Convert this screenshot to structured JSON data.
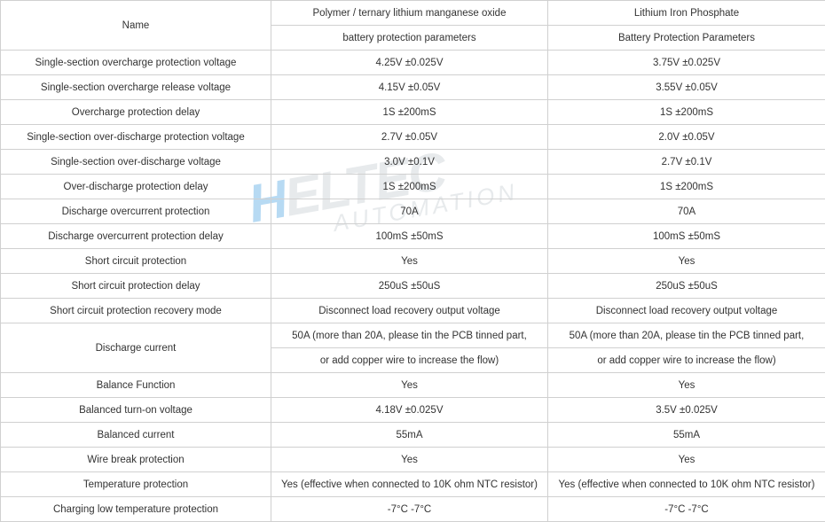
{
  "colors": {
    "border": "#d0d0d0",
    "text": "#333333",
    "watermark_h": "rgba(50,150,220,0.35)",
    "watermark_text": "rgba(160,170,180,0.25)"
  },
  "watermark": {
    "main": "HELTEC",
    "sub": "AUTOMATION"
  },
  "header": {
    "name": "Name",
    "col2a": "Polymer / ternary lithium manganese oxide",
    "col2b": "battery protection parameters",
    "col3a": "Lithium Iron Phosphate",
    "col3b": "Battery Protection Parameters"
  },
  "rows": [
    {
      "label": "Single-section overcharge protection voltage",
      "c2": "4.25V  ±0.025V",
      "c3": "3.75V  ±0.025V"
    },
    {
      "label": "Single-section overcharge release voltage",
      "c2": "4.15V  ±0.05V",
      "c3": "3.55V  ±0.05V"
    },
    {
      "label": "Overcharge protection delay",
      "c2": "1S   ±200mS",
      "c3": "1S   ±200mS"
    },
    {
      "label": "Single-section over-discharge protection voltage",
      "c2": "2.7V  ±0.05V",
      "c3": "2.0V  ±0.05V"
    },
    {
      "label": "Single-section over-discharge voltage",
      "c2": "3.0V  ±0.1V",
      "c3": "2.7V  ±0.1V"
    },
    {
      "label": "Over-discharge protection delay",
      "c2": "1S ±200mS",
      "c3": "1S ±200mS"
    },
    {
      "label": "Discharge overcurrent protection",
      "c2": "70A",
      "c3": "70A"
    },
    {
      "label": "Discharge overcurrent protection delay",
      "c2": "100mS   ±50mS",
      "c3": "100mS   ±50mS"
    },
    {
      "label": "Short circuit protection",
      "c2": "Yes",
      "c3": "Yes"
    },
    {
      "label": "Short circuit protection delay",
      "c2": "250uS ±50uS",
      "c3": "250uS ±50uS"
    },
    {
      "label": "Short circuit protection recovery mode",
      "c2": "Disconnect load recovery output voltage",
      "c3": "Disconnect load recovery output voltage"
    }
  ],
  "discharge_current": {
    "label": "Discharge current",
    "c2a": "50A (more than 20A, please tin the PCB tinned part,",
    "c2b": "or add copper wire to increase the flow)",
    "c3a": "50A (more than 20A, please tin the PCB tinned part,",
    "c3b": "or add copper wire to increase the flow)"
  },
  "rows2": [
    {
      "label": "Balance Function",
      "c2": "Yes",
      "c3": "Yes"
    },
    {
      "label": "Balanced turn-on voltage",
      "c2": "4.18V  ±0.025V",
      "c3": "3.5V  ±0.025V"
    },
    {
      "label": "Balanced current",
      "c2": "55mA",
      "c3": "55mA"
    },
    {
      "label": "Wire break protection",
      "c2": "Yes",
      "c3": "Yes"
    }
  ],
  "bold_rows": [
    {
      "label": "Temperature protection",
      "c2": "Yes (effective when connected to 10K ohm NTC resistor)",
      "c3": "Yes (effective when connected to 10K ohm NTC resistor)"
    },
    {
      "label": "Charging low temperature protection",
      "c2": "-7°C -7°C",
      "c3": "-7°C -7°C"
    }
  ]
}
